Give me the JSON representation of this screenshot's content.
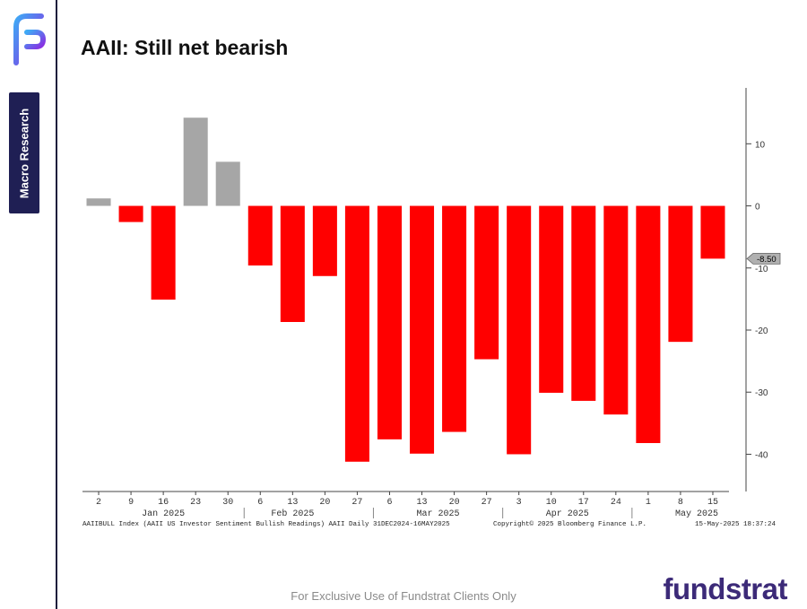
{
  "sidebar": {
    "section_label": "Macro Research"
  },
  "slide": {
    "title": "AAII: Still net bearish"
  },
  "chart_data": {
    "type": "bar",
    "categories": [
      "2",
      "9",
      "16",
      "23",
      "30",
      "6",
      "13",
      "20",
      "27",
      "6",
      "13",
      "20",
      "27",
      "3",
      "10",
      "17",
      "24",
      "1",
      "8",
      "15"
    ],
    "values": [
      1.2,
      -2.6,
      -15.1,
      14.2,
      7.1,
      -9.6,
      -18.7,
      -11.3,
      -41.2,
      -37.6,
      -39.9,
      -36.4,
      -24.7,
      -40.0,
      -30.1,
      -31.4,
      -33.6,
      -38.2,
      -21.9,
      -8.5
    ],
    "months": [
      {
        "label": "Jan 2025",
        "center_index": 2
      },
      {
        "label": "Feb 2025",
        "center_index": 6
      },
      {
        "label": "Mar 2025",
        "center_index": 10.5
      },
      {
        "label": "Apr 2025",
        "center_index": 14.5
      },
      {
        "label": "May 2025",
        "center_index": 18.5
      }
    ],
    "month_dividers_after_index": [
      4,
      8,
      12,
      16
    ],
    "ylim": [
      -46,
      19
    ],
    "yticks": [
      10,
      0,
      -10,
      -20,
      -30,
      -40
    ],
    "last_value_label": "-8.50",
    "colors": {
      "positive": "#a6a6a6",
      "negative": "#ff0000"
    },
    "footer_left": "AAIIBULL Index (AAII US Investor Sentiment Bullish Readings) AAII  Daily 31DEC2024-16MAY2025",
    "footer_center": "Copyright© 2025 Bloomberg Finance L.P.",
    "footer_right": "15-May-2025 18:37:24"
  },
  "footer": {
    "disclaimer": "For Exclusive Use of Fundstrat Clients Only"
  },
  "brand": {
    "name": "fundstrat"
  }
}
